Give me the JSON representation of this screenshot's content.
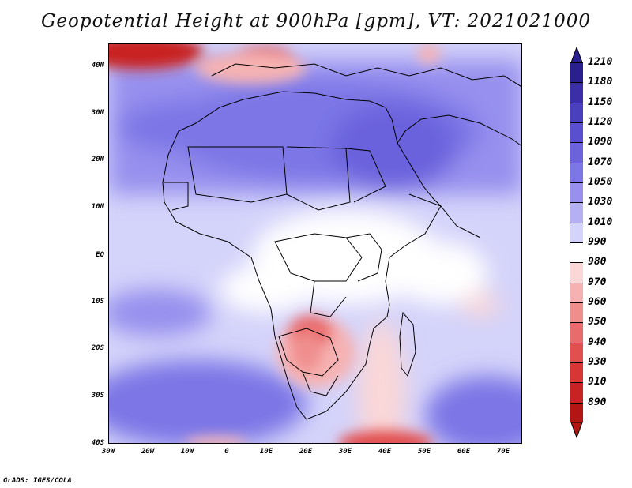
{
  "title": "Geopotential Height at 900hPa [gpm], VT: 2021021000",
  "footer": "GrADS: IGES/COLA",
  "lat_labels": [
    "40N",
    "30N",
    "20N",
    "10N",
    "EQ",
    "10S",
    "20S",
    "30S",
    "40S"
  ],
  "lon_labels": [
    "30W",
    "20W",
    "10W",
    "0",
    "10E",
    "20E",
    "30E",
    "40E",
    "50E",
    "60E",
    "70E"
  ],
  "colorbar": {
    "labels": [
      "1210",
      "1180",
      "1150",
      "1120",
      "1090",
      "1070",
      "1050",
      "1030",
      "1010",
      "990",
      "980",
      "970",
      "960",
      "950",
      "940",
      "930",
      "910",
      "890"
    ],
    "colors": [
      "#2a1f8f",
      "#3b2fa8",
      "#4a3fbd",
      "#5a50cf",
      "#6b62dc",
      "#7c76e6",
      "#9790ee",
      "#b4b0f3",
      "#d4d3fa",
      "#ffffff",
      "#fbd7d7",
      "#f6b2b2",
      "#f08e8e",
      "#ea6b6b",
      "#e24f4f",
      "#d83535",
      "#c82222",
      "#b31515"
    ]
  },
  "colors": {
    "high": "#7c76e6",
    "low": "#e24f4f",
    "border": "#000000"
  }
}
